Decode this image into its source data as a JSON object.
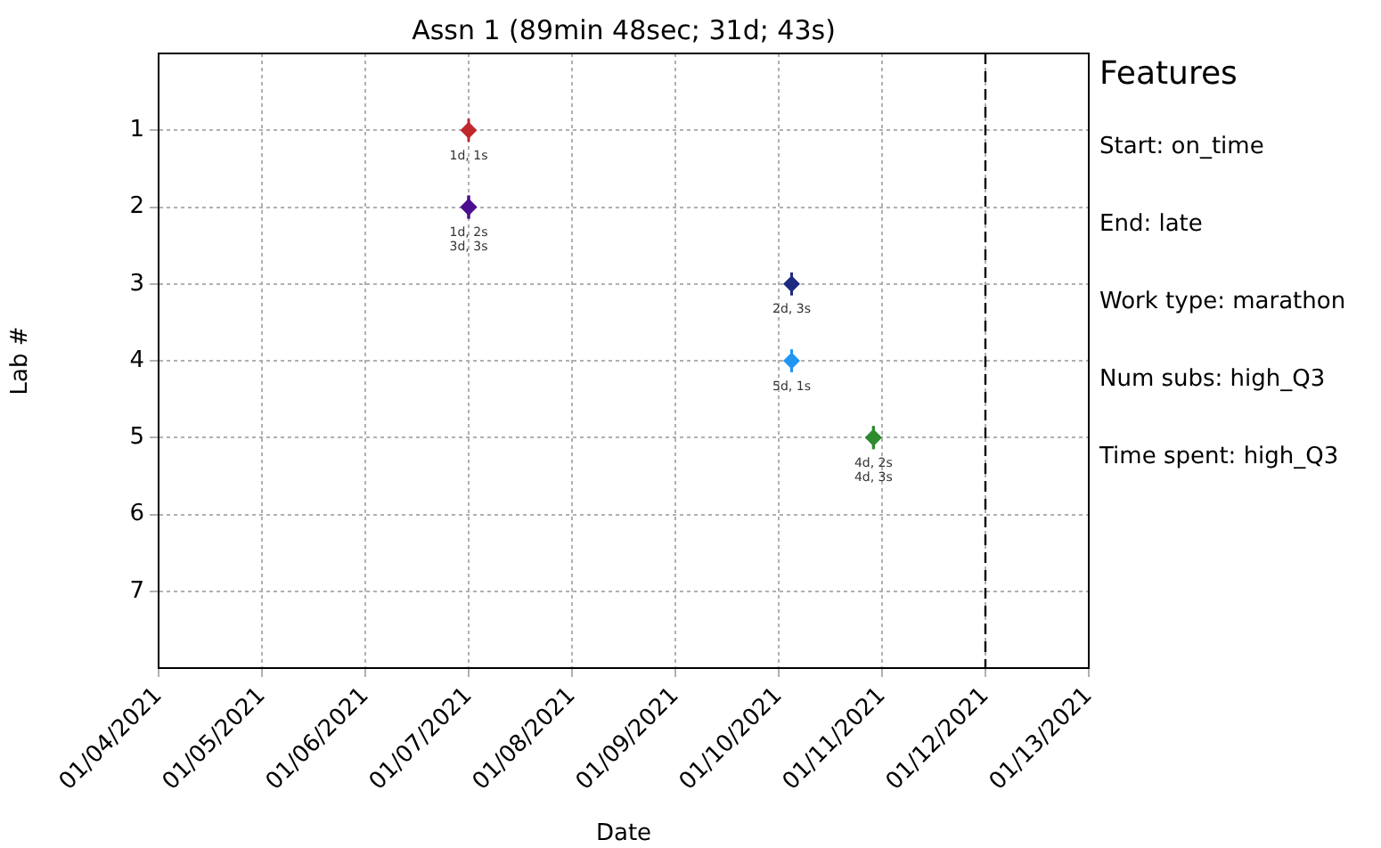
{
  "chart_data": {
    "type": "scatter",
    "title": "Assn 1 (89min 48sec; 31d; 43s)",
    "xlabel": "Date",
    "ylabel": "Lab #",
    "xlim": [
      "2021-01-04",
      "2021-01-13"
    ],
    "xticks": [
      {
        "value": "2021-01-04",
        "label": "01/04/2021"
      },
      {
        "value": "2021-01-05",
        "label": "01/05/2021"
      },
      {
        "value": "2021-01-06",
        "label": "01/06/2021"
      },
      {
        "value": "2021-01-07",
        "label": "01/07/2021"
      },
      {
        "value": "2021-01-08",
        "label": "01/08/2021"
      },
      {
        "value": "2021-01-09",
        "label": "01/09/2021"
      },
      {
        "value": "2021-01-10",
        "label": "01/10/2021"
      },
      {
        "value": "2021-01-11",
        "label": "01/11/2021"
      },
      {
        "value": "2021-01-12",
        "label": "01/12/2021"
      },
      {
        "value": "2021-01-13",
        "label": "01/13/2021"
      }
    ],
    "ylim": [
      8,
      0
    ],
    "yticks": [
      1,
      2,
      3,
      4,
      5,
      6,
      7
    ],
    "grid": true,
    "marker": "diamond",
    "series": [
      {
        "color": "#c0282d",
        "x": [
          "2021-01-07T00:00"
        ],
        "values": [
          1
        ],
        "errors": [
          0.15
        ],
        "value_labels": [
          "1d, 1s"
        ]
      },
      {
        "color": "#4b0f8f",
        "x": [
          "2021-01-07T00:00"
        ],
        "values": [
          2
        ],
        "errors": [
          0.15
        ],
        "value_labels": [
          "1d, 2s"
        ]
      },
      {
        "color": "#4b0f8f",
        "x": [
          "2021-01-07T00:00"
        ],
        "values": [
          2
        ],
        "errors": [
          0.15
        ],
        "value_labels": [
          "3d, 3s"
        ]
      },
      {
        "color": "#1c2a80",
        "x": [
          "2021-01-10T03:00"
        ],
        "values": [
          3
        ],
        "errors": [
          0.15
        ],
        "value_labels": [
          "2d, 3s"
        ]
      },
      {
        "color": "#2196f3",
        "x": [
          "2021-01-10T03:00"
        ],
        "values": [
          4
        ],
        "errors": [
          0.15
        ],
        "value_labels": [
          "5d, 1s"
        ]
      },
      {
        "color": "#2e8b2e",
        "x": [
          "2021-01-10T22:00"
        ],
        "values": [
          5
        ],
        "errors": [
          0.15
        ],
        "value_labels": [
          "4d, 2s"
        ]
      },
      {
        "color": "#2e8b2e",
        "x": [
          "2021-01-10T22:00"
        ],
        "values": [
          5
        ],
        "errors": [
          0.15
        ],
        "value_labels": [
          "4d, 3s"
        ]
      }
    ],
    "ref_lines": [
      {
        "axis": "x",
        "value": "2021-01-12",
        "color": "#000000",
        "line_style": "dashed"
      }
    ],
    "annotations": [
      "Features",
      "Start: on_time",
      "End: late",
      "Work type: marathon",
      "Num subs: high_Q3",
      "Time spent: high_Q3"
    ],
    "legend": false
  }
}
